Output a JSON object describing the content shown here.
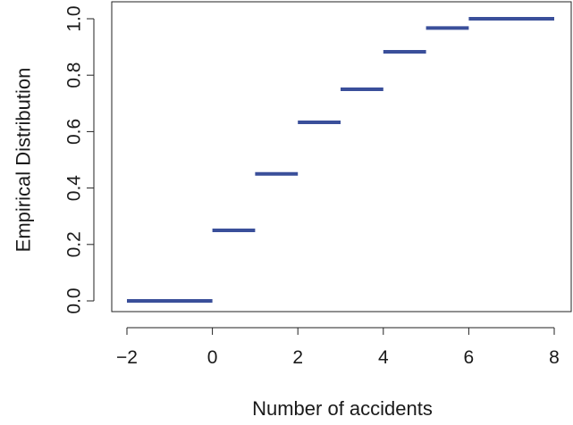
{
  "chart_data": {
    "type": "step",
    "title": "",
    "xlabel": "Number of accidents",
    "ylabel": "Empirical Distribution",
    "xlim": [
      -2,
      8
    ],
    "ylim": [
      0,
      1
    ],
    "x_ticks": [
      -2,
      0,
      2,
      4,
      6,
      8
    ],
    "x_tick_labels": [
      "−2",
      "0",
      "2",
      "4",
      "6",
      "8"
    ],
    "y_ticks": [
      0,
      0.2,
      0.4,
      0.6,
      0.8,
      1
    ],
    "y_tick_labels": [
      "0.0",
      "0.2",
      "0.4",
      "0.6",
      "0.8",
      "1.0"
    ],
    "grid": false,
    "line_color": "#3a4f9a",
    "series": [
      {
        "segments": [
          {
            "x_start": -2,
            "x_end": 0,
            "y": 0.0
          },
          {
            "x_start": 0,
            "x_end": 1,
            "y": 0.25
          },
          {
            "x_start": 1,
            "x_end": 2,
            "y": 0.45
          },
          {
            "x_start": 2,
            "x_end": 3,
            "y": 0.633
          },
          {
            "x_start": 3,
            "x_end": 4,
            "y": 0.75
          },
          {
            "x_start": 4,
            "x_end": 5,
            "y": 0.883
          },
          {
            "x_start": 5,
            "x_end": 6,
            "y": 0.967
          },
          {
            "x_start": 6,
            "x_end": 8,
            "y": 1.0
          }
        ]
      }
    ]
  }
}
